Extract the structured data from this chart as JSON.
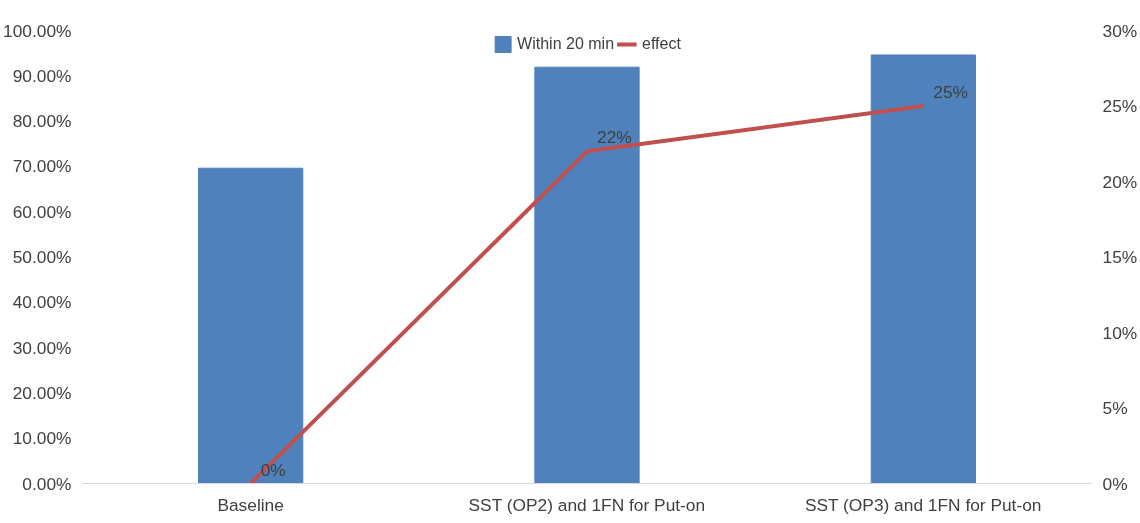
{
  "chart_data": {
    "type": "bar",
    "categories": [
      "Baseline",
      "SST (OP2) and 1FN for Put-on",
      "SST (OP3) and 1FN for Put-on"
    ],
    "series": [
      {
        "name": "Within 20 min",
        "color": "#4f81bd",
        "values": [
          69.6,
          91.9,
          94.6
        ]
      },
      {
        "name": "effect",
        "type": "line",
        "axis": "y2",
        "color": "#c0504d",
        "values": [
          0,
          22,
          25
        ],
        "value_labels": [
          "0%",
          "22%",
          "25%"
        ]
      }
    ],
    "ylim": [
      0,
      100
    ],
    "yticks": [
      {
        "value": 0,
        "label": "0.00%"
      },
      {
        "value": 10,
        "label": "10.00%"
      },
      {
        "value": 20,
        "label": "20.00%"
      },
      {
        "value": 30,
        "label": "30.00%"
      },
      {
        "value": 40,
        "label": "40.00%"
      },
      {
        "value": 50,
        "label": "50.00%"
      },
      {
        "value": 60,
        "label": "60.00%"
      },
      {
        "value": 70,
        "label": "70.00%"
      },
      {
        "value": 80,
        "label": "80.00%"
      },
      {
        "value": 90,
        "label": "90.00%"
      },
      {
        "value": 100,
        "label": "100.00%"
      }
    ],
    "y2lim": [
      0,
      30
    ],
    "y2ticks": [
      {
        "value": 0,
        "label": "0%"
      },
      {
        "value": 5,
        "label": "5%"
      },
      {
        "value": 10,
        "label": "10%"
      },
      {
        "value": 15,
        "label": "15%"
      },
      {
        "value": 20,
        "label": "20%"
      },
      {
        "value": 25,
        "label": "25%"
      },
      {
        "value": 30,
        "label": "30%"
      }
    ],
    "grid": false,
    "legend": "top",
    "marker": "none",
    "line_style": "solid"
  }
}
